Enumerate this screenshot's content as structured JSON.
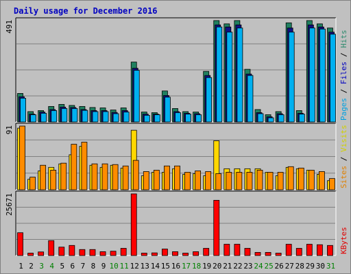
{
  "chart_data": {
    "type": "bar",
    "title": "Daily usage for December 2016",
    "days": [
      "1",
      "2",
      "3",
      "4",
      "5",
      "6",
      "7",
      "8",
      "9",
      "10",
      "11",
      "12",
      "13",
      "14",
      "15",
      "16",
      "17",
      "18",
      "19",
      "20",
      "21",
      "22",
      "23",
      "24",
      "25",
      "26",
      "27",
      "28",
      "29",
      "30",
      "31"
    ],
    "weekend_days": [
      "3",
      "4",
      "10",
      "11",
      "17",
      "18",
      "24",
      "25",
      "31"
    ],
    "panels": [
      {
        "name": "hits-panel",
        "max_label": "491",
        "ymax": 491,
        "legend": [
          {
            "text": "Pages",
            "color": "#00a0e0"
          },
          {
            "text": " / ",
            "color": "#000000"
          },
          {
            "text": "Files",
            "color": "#0000c0"
          },
          {
            "text": " / ",
            "color": "#000000"
          },
          {
            "text": "Hits",
            "color": "#2e8b6e"
          }
        ],
        "series": [
          {
            "name": "Hits",
            "color": "#208060",
            "values": [
              138,
              50,
              55,
              75,
              85,
              80,
              75,
              70,
              68,
              58,
              68,
              290,
              48,
              45,
              150,
              65,
              50,
              48,
              245,
              491,
              475,
              491,
              255,
              60,
              35,
              50,
              480,
              55,
              491,
              475,
              455
            ]
          },
          {
            "name": "Files",
            "color": "#101080",
            "values": [
              122,
              38,
              48,
              60,
              72,
              70,
              60,
              55,
              55,
              46,
              55,
              260,
              38,
              38,
              128,
              50,
              42,
              40,
              225,
              470,
              460,
              470,
              232,
              45,
              25,
              40,
              455,
              42,
              470,
              460,
              435
            ]
          },
          {
            "name": "Pages",
            "color": "#00b0f0",
            "values": [
              115,
              35,
              42,
              55,
              65,
              65,
              56,
              50,
              50,
              40,
              48,
              250,
              32,
              35,
              120,
              45,
              38,
              35,
              215,
              460,
              435,
              455,
              225,
              40,
              20,
              35,
              435,
              38,
              455,
              450,
              425
            ]
          }
        ]
      },
      {
        "name": "visits-panel",
        "max_label": "91",
        "ymax": 91,
        "legend": [
          {
            "text": "Sites",
            "color": "#e08000"
          },
          {
            "text": " / ",
            "color": "#000000"
          },
          {
            "text": "Visits",
            "color": "#d0d000"
          }
        ],
        "series": [
          {
            "name": "Visits",
            "color": "#ffd700",
            "values": [
              88,
              15,
              27,
              32,
              37,
              50,
              62,
              35,
              32,
              35,
              31,
              85,
              20,
              25,
              25,
              30,
              22,
              23,
              20,
              70,
              30,
              30,
              30,
              30,
              25,
              20,
              32,
              30,
              28,
              22,
              13
            ]
          },
          {
            "name": "Sites",
            "color": "#ff8c00",
            "values": [
              91,
              18,
              35,
              28,
              38,
              65,
              68,
              37,
              37,
              36,
              34,
              42,
              26,
              28,
              34,
              34,
              25,
              27,
              26,
              23,
              25,
              25,
              25,
              28,
              25,
              25,
              33,
              31,
              28,
              26,
              16
            ]
          }
        ]
      },
      {
        "name": "kbytes-panel",
        "max_label": "25671",
        "ymax": 25671,
        "legend": [
          {
            "text": "KBytes",
            "color": "#e00000"
          }
        ],
        "series": [
          {
            "name": "KBytes",
            "color": "#ff0000",
            "values": [
              9500,
              1000,
              1500,
              6200,
              3500,
              4200,
              2500,
              2500,
              1600,
              1800,
              3000,
              25671,
              1000,
              1100,
              2700,
              1600,
              1000,
              1600,
              3000,
              23000,
              4700,
              4700,
              3000,
              1300,
              1300,
              1000,
              4700,
              3000,
              4700,
              4500,
              4200
            ]
          }
        ]
      }
    ]
  }
}
